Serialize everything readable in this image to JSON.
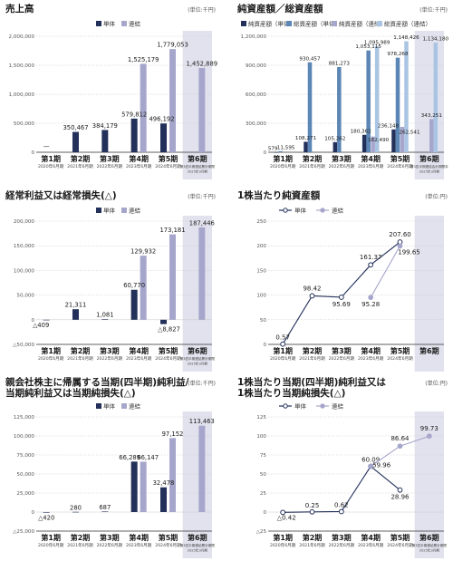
{
  "colors": {
    "dark_navy": "#22305a",
    "purple_light": "#a6a6cc",
    "blue_steel": "#5b86b5",
    "light_blue": "#a9c5e3",
    "highlight_bg": "#e2e2ee",
    "grid": "#c8c8c8"
  },
  "chart_data": [
    {
      "id": "sales",
      "type": "bar",
      "title": "売上高",
      "unit": "(単位:千円)",
      "legend": [
        "単体",
        "連結"
      ],
      "categories": [
        "第1期",
        "第2期",
        "第3期",
        "第4期",
        "第5期",
        "第6期"
      ],
      "sublabels": [
        "2020年6月期",
        "2021年6月期",
        "2022年6月期",
        "2023年6月期",
        "2024年6月期",
        "第3四半期連結累計期間\n2025年3月期"
      ],
      "ylim": [
        0,
        2000000
      ],
      "yticks": [
        0,
        500000,
        1000000,
        1500000,
        2000000
      ],
      "ytick_labels": [
        "0",
        "500,000",
        "1,000,000",
        "1,500,000",
        "2,000,000"
      ],
      "series": [
        {
          "name": "単体",
          "values": [
            null,
            350467,
            384179,
            579812,
            496192,
            null
          ],
          "labels": [
            "—",
            "350,467",
            "384,179",
            "579,812",
            "496,192",
            ""
          ]
        },
        {
          "name": "連結",
          "values": [
            null,
            null,
            null,
            1525179,
            1779053,
            1452889
          ],
          "labels": [
            "",
            "",
            "",
            "1,525,179",
            "1,779,053",
            "1,452,889"
          ]
        }
      ]
    },
    {
      "id": "net_assets",
      "type": "bar",
      "title": "純資産額／総資産額",
      "unit": "(単位:千円)",
      "legend": [
        "純資産額（単体）",
        "総資産額（単体）",
        "純資産額（連結）",
        "総資産額（連結）"
      ],
      "categories": [
        "第1期",
        "第2期",
        "第3期",
        "第4期",
        "第5期",
        "第6期"
      ],
      "sublabels": [
        "2020年6月期",
        "2021年6月期",
        "2022年6月期",
        "2023年6月期",
        "2024年6月期",
        "第3四半期連結会計期間末\n2025年3月期"
      ],
      "ylim": [
        0,
        1200000
      ],
      "yticks": [
        0,
        300000,
        600000,
        900000,
        1200000
      ],
      "ytick_labels": [
        "0",
        "300,000",
        "600,000",
        "900,000",
        "1,200,000"
      ],
      "series": [
        {
          "name": "純資産額（単体）",
          "values": [
            579,
            108271,
            105262,
            180362,
            236148,
            null
          ],
          "labels": [
            "579",
            "108,271",
            "105,262",
            "180,362",
            "236,148",
            ""
          ]
        },
        {
          "name": "総資産額（単体）",
          "values": [
            11595,
            930457,
            881273,
            1053115,
            978268,
            null
          ],
          "labels": [
            "11,595",
            "930,457",
            "881,273",
            "1,053,115",
            "978,268",
            ""
          ]
        },
        {
          "name": "純資産額（連結）",
          "values": [
            null,
            null,
            null,
            162490,
            262541,
            343251
          ],
          "labels": [
            "",
            "",
            "",
            "162,490",
            "262,541",
            "343,251"
          ]
        },
        {
          "name": "総資産額（連結）",
          "values": [
            null,
            null,
            null,
            1095989,
            1148426,
            1134180
          ],
          "labels": [
            "",
            "",
            "",
            "1,095,989",
            "1,148,426",
            "1,134,180"
          ]
        }
      ]
    },
    {
      "id": "ordinary_profit",
      "type": "bar",
      "title": "経常利益又は経常損失(△)",
      "unit": "(単位:千円)",
      "legend": [
        "単体",
        "連結"
      ],
      "categories": [
        "第1期",
        "第2期",
        "第3期",
        "第4期",
        "第5期",
        "第6期"
      ],
      "sublabels": [
        "2020年6月期",
        "2021年6月期",
        "2022年6月期",
        "2023年6月期",
        "2024年6月期",
        "第3四半期連結累計期間\n2025年3月期"
      ],
      "ylim": [
        -50000,
        200000
      ],
      "yticks": [
        -50000,
        0,
        50000,
        100000,
        150000,
        200000
      ],
      "ytick_labels": [
        "△50,000",
        "0",
        "50,000",
        "100,000",
        "150,000",
        "200,000"
      ],
      "series": [
        {
          "name": "単体",
          "values": [
            -409,
            21311,
            1081,
            60770,
            -8827,
            null
          ],
          "labels": [
            "△409",
            "21,311",
            "1,081",
            "60,770",
            "△8,827",
            ""
          ]
        },
        {
          "name": "連結",
          "values": [
            null,
            null,
            null,
            129932,
            173181,
            187446
          ],
          "labels": [
            "",
            "",
            "",
            "129,932",
            "173,181",
            "187,446"
          ]
        }
      ]
    },
    {
      "id": "bps",
      "type": "line",
      "title": "1株当たり純資産額",
      "unit": "(単位:円)",
      "legend": [
        "単体",
        "連結"
      ],
      "categories": [
        "第1期",
        "第2期",
        "第3期",
        "第4期",
        "第5期",
        "第6期"
      ],
      "sublabels": [
        "2020年6月期",
        "2021年6月期",
        "2022年6月期",
        "2023年6月期",
        "2024年6月期",
        ""
      ],
      "ylim": [
        0,
        250
      ],
      "yticks": [
        0,
        50,
        100,
        150,
        200,
        250
      ],
      "ytick_labels": [
        "0",
        "50",
        "100",
        "150",
        "200",
        "250"
      ],
      "series": [
        {
          "name": "単体",
          "values": [
            0.57,
            98.42,
            95.69,
            161.37,
            207.6,
            null
          ],
          "labels": [
            "0.57",
            "98.42",
            "95.69",
            "161.37",
            "207.60",
            ""
          ]
        },
        {
          "name": "連結",
          "values": [
            null,
            null,
            null,
            95.28,
            199.65,
            null
          ],
          "labels": [
            "",
            "",
            "",
            "95.28",
            "199.65",
            ""
          ]
        }
      ]
    },
    {
      "id": "net_income",
      "type": "bar",
      "title": "親会社株主に帰属する当期(四半期)純利益/\n当期純利益又は当期純損失(△)",
      "unit": "(単位:千円)",
      "legend": [
        "単体",
        "連結"
      ],
      "categories": [
        "第1期",
        "第2期",
        "第3期",
        "第4期",
        "第5期",
        "第6期"
      ],
      "sublabels": [
        "2020年6月期",
        "2021年6月期",
        "2022年6月期",
        "2023年6月期",
        "2024年6月期",
        "第3四半期連結累計期間\n2025年3月期"
      ],
      "ylim": [
        -25000,
        125000
      ],
      "yticks": [
        -25000,
        0,
        25000,
        50000,
        75000,
        100000,
        125000
      ],
      "ytick_labels": [
        "△25,000",
        "0",
        "25,000",
        "50,000",
        "75,000",
        "100,000",
        "125,000"
      ],
      "series": [
        {
          "name": "単体",
          "values": [
            -420,
            280,
            687,
            66289,
            32478,
            null
          ],
          "labels": [
            "△420",
            "280",
            "687",
            "66,289",
            "32,478",
            ""
          ]
        },
        {
          "name": "連結",
          "values": [
            null,
            null,
            null,
            66147,
            97152,
            113463
          ],
          "labels": [
            "",
            "",
            "",
            "66,147",
            "97,152",
            "113,463"
          ]
        }
      ]
    },
    {
      "id": "eps",
      "type": "line",
      "title": "1株当たり当期(四半期)純利益又は\n1株当たり当期純損失(△)",
      "unit": "(単位:円)",
      "legend": [
        "単体",
        "連結"
      ],
      "categories": [
        "第1期",
        "第2期",
        "第3期",
        "第4期",
        "第5期",
        "第6期"
      ],
      "sublabels": [
        "2020年6月期",
        "2021年6月期",
        "2022年6月期",
        "2023年6月期",
        "2024年6月期",
        "第3四半期連結累計期間\n2025年3月期"
      ],
      "ylim": [
        -25,
        125
      ],
      "yticks": [
        -25,
        0,
        25,
        50,
        75,
        100,
        125
      ],
      "ytick_labels": [
        "△25",
        "0",
        "25",
        "50",
        "75",
        "100",
        "125"
      ],
      "series": [
        {
          "name": "単体",
          "values": [
            -0.42,
            0.25,
            0.62,
            60.09,
            28.96,
            null
          ],
          "labels": [
            "△0.42",
            "0.25",
            "0.62",
            "60.09",
            "28.96",
            ""
          ]
        },
        {
          "name": "連結",
          "values": [
            null,
            null,
            null,
            59.96,
            86.64,
            99.73
          ],
          "labels": [
            "",
            "",
            "",
            "59.96",
            "86.64",
            "99.73"
          ]
        }
      ]
    }
  ]
}
